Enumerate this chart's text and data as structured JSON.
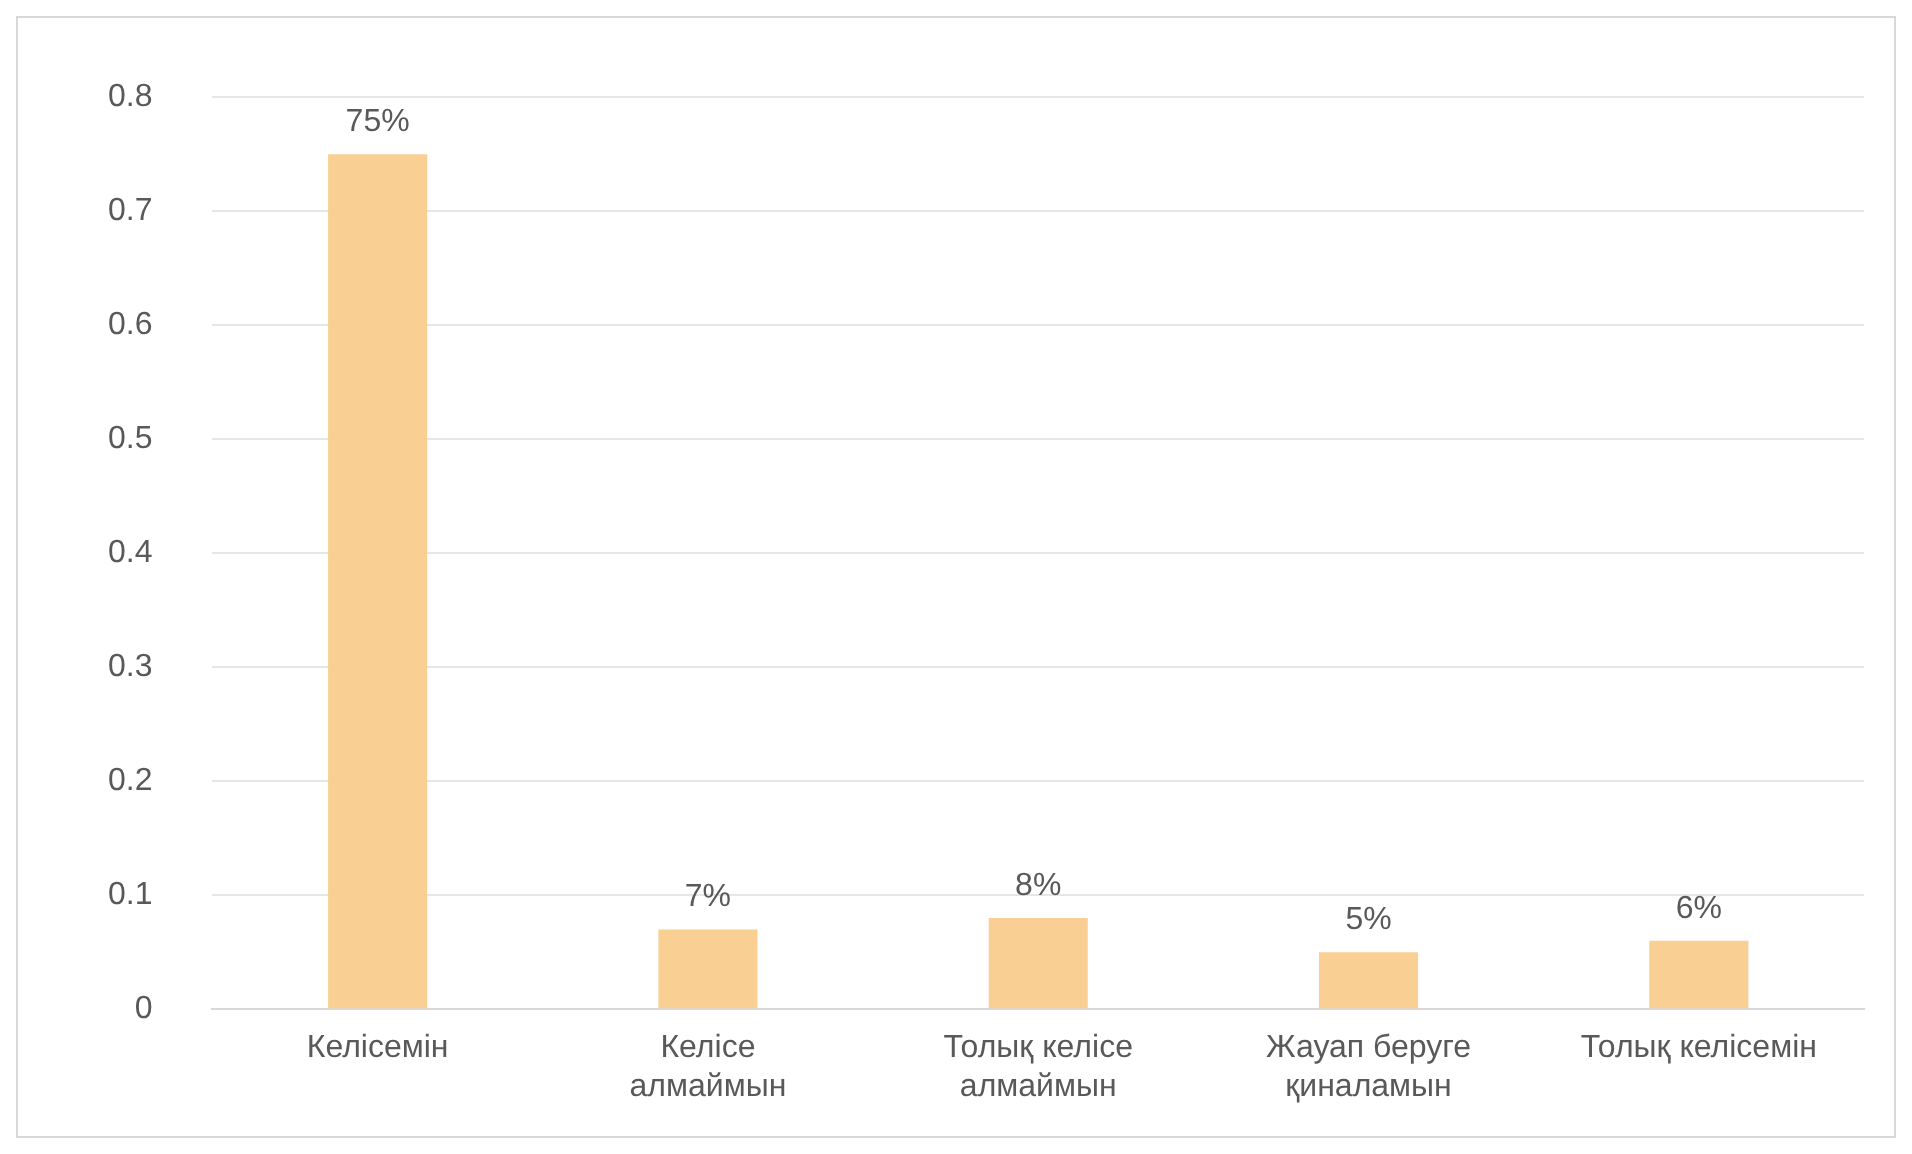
{
  "chart_data": {
    "type": "bar",
    "categories": [
      "Келісемін",
      "Келісе алмаймын",
      "Толық келісе алмаймын",
      "Жауап беруге қиналамын",
      "Толық келісемін"
    ],
    "values": [
      0.75,
      0.07,
      0.08,
      0.05,
      0.06
    ],
    "value_labels": [
      "75%",
      "7%",
      "8%",
      "5%",
      "6%"
    ],
    "color": "#f9cf94",
    "ylim": [
      0,
      0.8
    ],
    "yticks": [
      0,
      0.1,
      0.2,
      0.3,
      0.4,
      0.5,
      0.6,
      0.7,
      0.8
    ],
    "grid": "y",
    "legend": false
  }
}
